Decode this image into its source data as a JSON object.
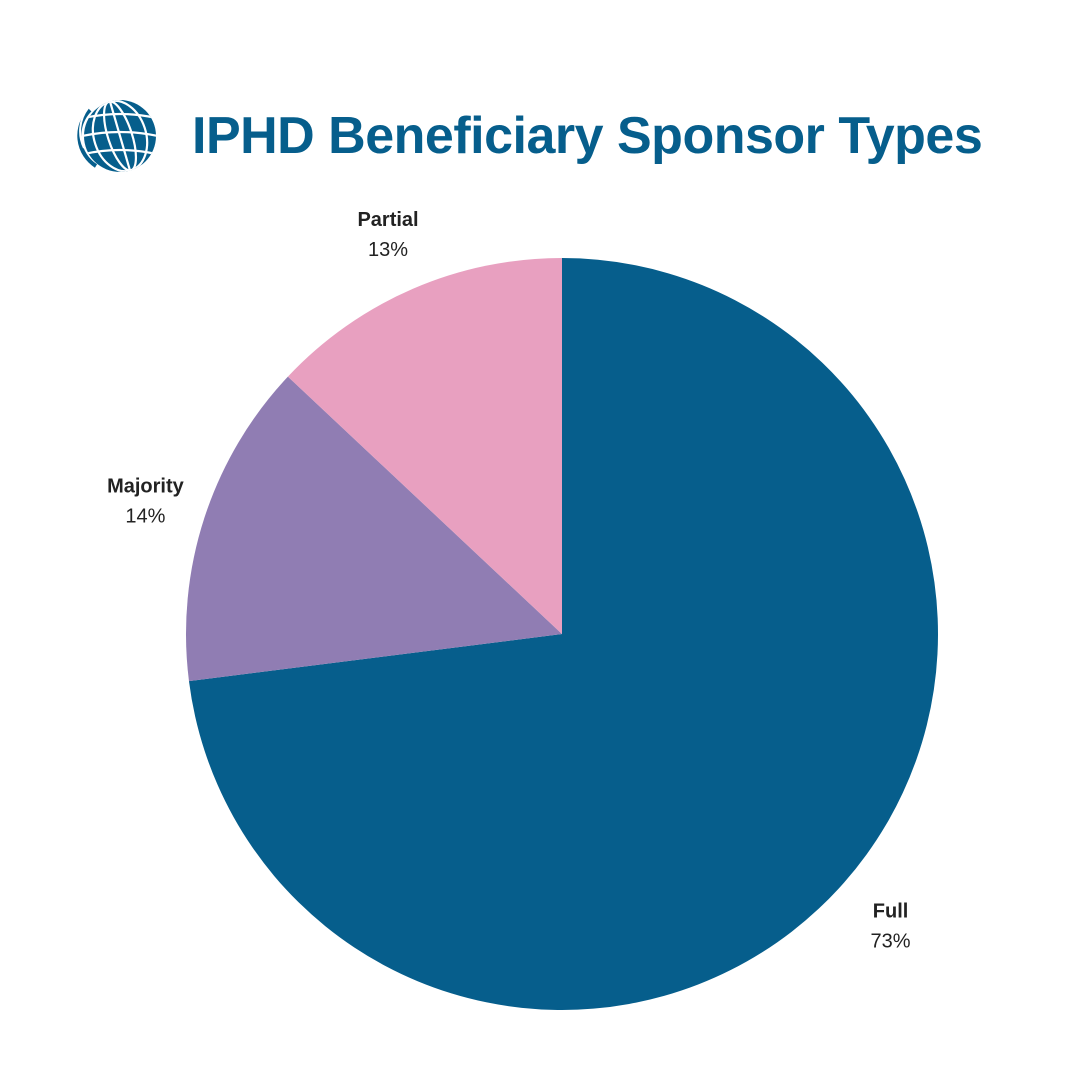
{
  "header": {
    "title": "IPHD Beneficiary Sponsor Types",
    "title_color": "#065e8c",
    "logo_icon": "globe-icon"
  },
  "chart_data": {
    "type": "pie",
    "title": "IPHD Beneficiary Sponsor Types",
    "start": "12 o'clock, clockwise",
    "slices": [
      {
        "name": "Full",
        "value": 73,
        "label": "73%",
        "color": "#065e8c"
      },
      {
        "name": "Majority",
        "value": 14,
        "label": "14%",
        "color": "#907db3"
      },
      {
        "name": "Partial",
        "value": 13,
        "label": "13%",
        "color": "#e8a0c0"
      }
    ]
  }
}
